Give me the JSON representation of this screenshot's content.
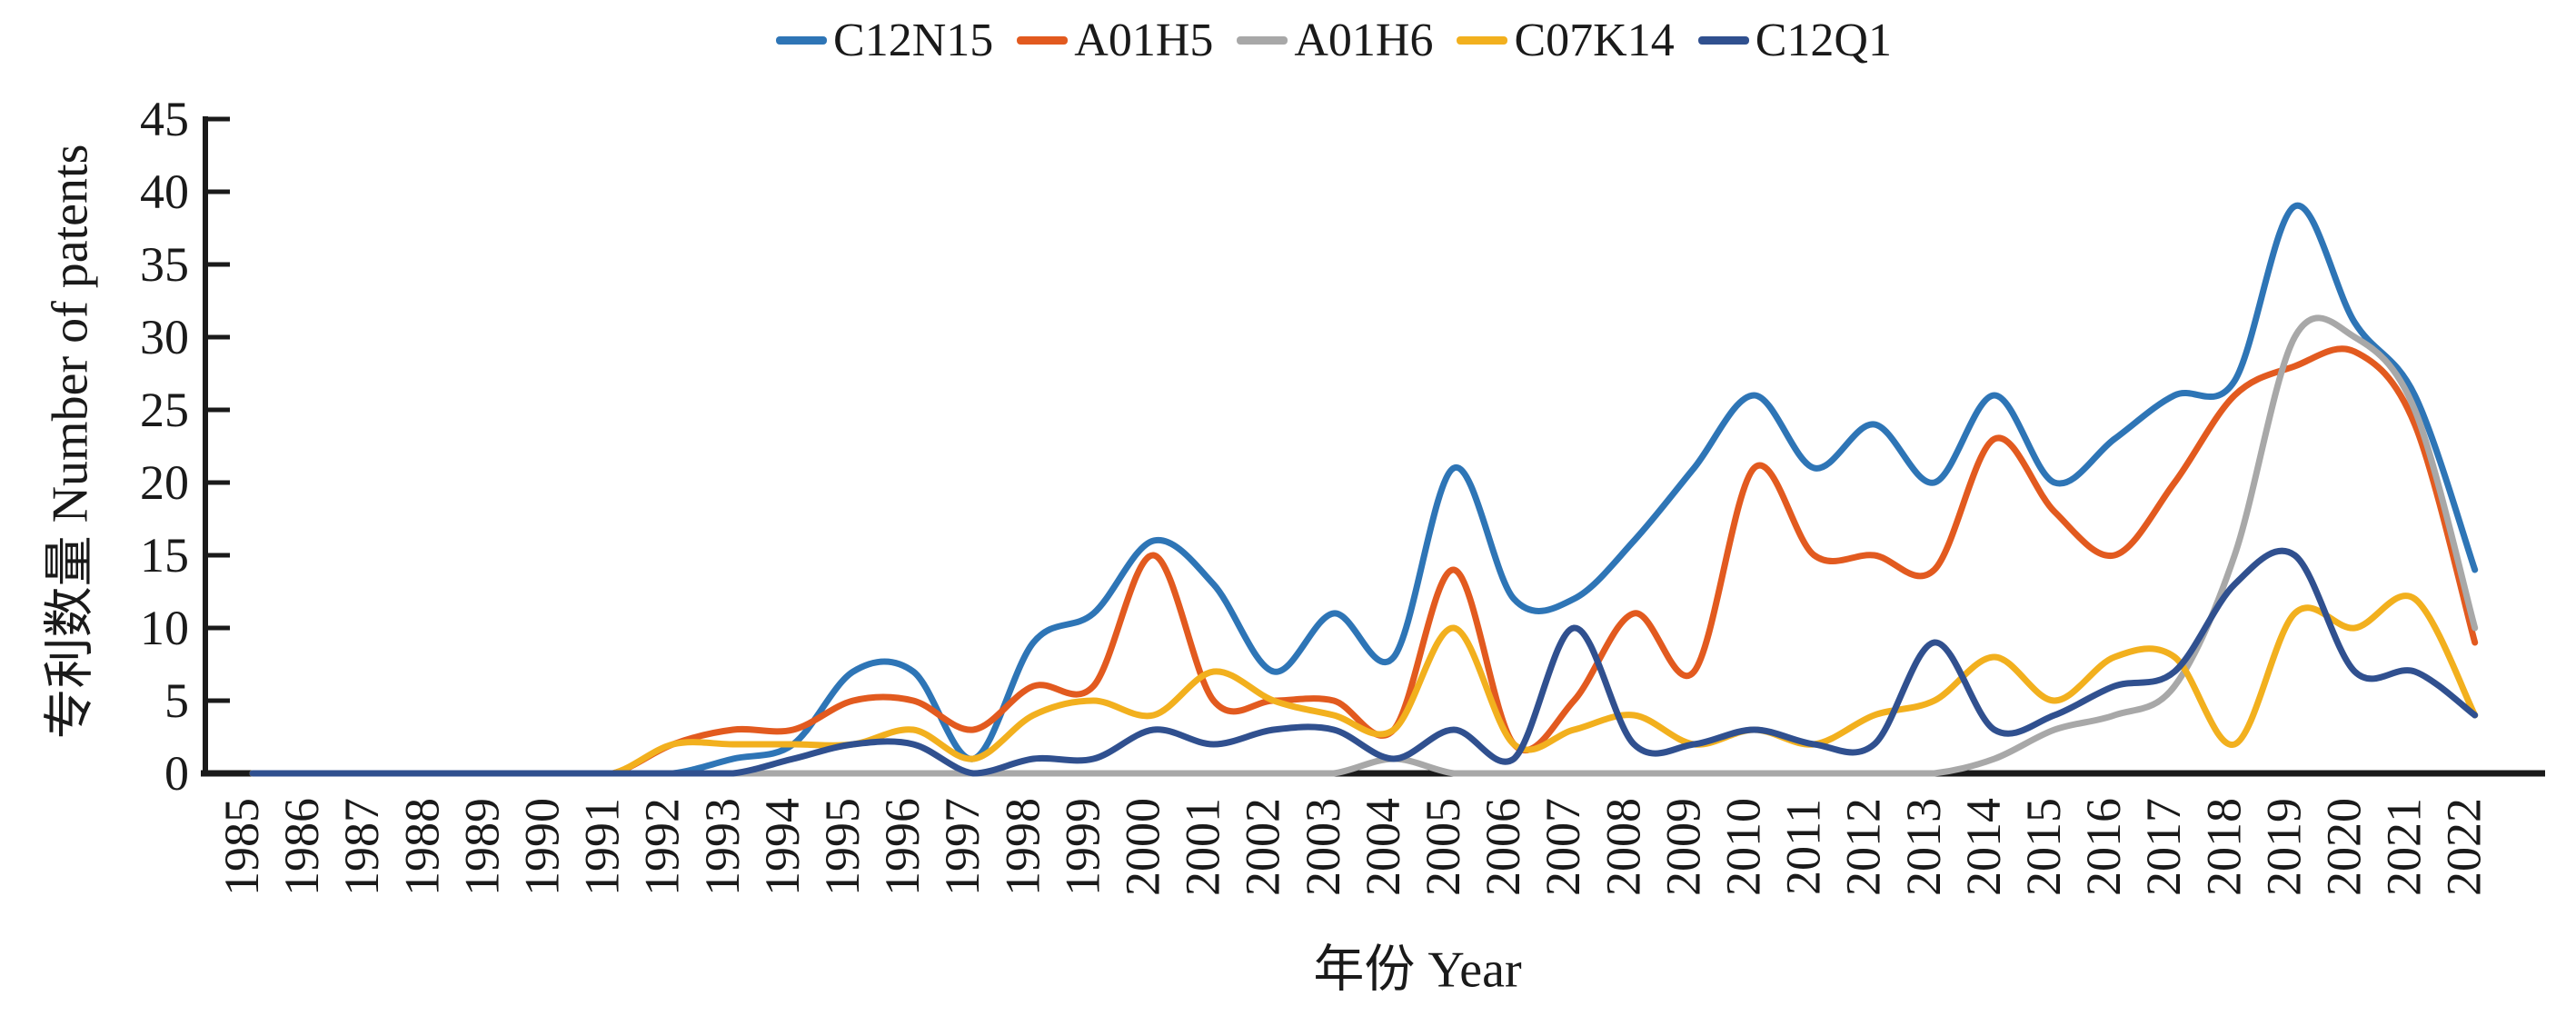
{
  "chart_data": {
    "type": "line",
    "title": "",
    "xlabel": "年份  Year",
    "ylabel": "专利数量  Number of patents",
    "ylim": [
      0,
      45
    ],
    "ytick_step": 5,
    "yticks": [
      "0",
      "5",
      "10",
      "15",
      "20",
      "25",
      "30",
      "35",
      "40",
      "45"
    ],
    "grid": false,
    "smooth": true,
    "legend_position": "top-center",
    "axis_color": "#1a1a1a",
    "x": [
      "1985",
      "1986",
      "1987",
      "1988",
      "1989",
      "1990",
      "1991",
      "1992",
      "1993",
      "1994",
      "1995",
      "1996",
      "1997",
      "1998",
      "1999",
      "2000",
      "2001",
      "2002",
      "2003",
      "2004",
      "2005",
      "2006",
      "2007",
      "2008",
      "2009",
      "2010",
      "2011",
      "2012",
      "2013",
      "2014",
      "2015",
      "2016",
      "2017",
      "2018",
      "2019",
      "2020",
      "2021",
      "2022"
    ],
    "series": [
      {
        "name": "C12N15",
        "color": "#2E75B6",
        "values": [
          0,
          0,
          0,
          0,
          0,
          0,
          0,
          0,
          1,
          2,
          7,
          7,
          1,
          9,
          11,
          16,
          13,
          7,
          11,
          8,
          21,
          12,
          12,
          16,
          21,
          26,
          21,
          24,
          20,
          26,
          20,
          23,
          26,
          27,
          39,
          31,
          26,
          14
        ]
      },
      {
        "name": "A01H5",
        "color": "#E25A1F",
        "values": [
          0,
          0,
          0,
          0,
          0,
          0,
          0,
          2,
          3,
          3,
          5,
          5,
          3,
          6,
          6,
          15,
          5,
          5,
          5,
          3,
          14,
          2,
          5,
          11,
          7,
          21,
          15,
          15,
          14,
          23,
          18,
          15,
          20,
          26,
          28,
          29,
          24,
          9
        ]
      },
      {
        "name": "A01H6",
        "color": "#A8A8A8",
        "values": [
          0,
          0,
          0,
          0,
          0,
          0,
          0,
          0,
          0,
          0,
          0,
          0,
          0,
          0,
          0,
          0,
          0,
          0,
          0,
          1,
          0,
          0,
          0,
          0,
          0,
          0,
          0,
          0,
          0,
          1,
          3,
          4,
          6,
          15,
          30,
          30,
          25,
          10
        ]
      },
      {
        "name": "C07K14",
        "color": "#F2B01E",
        "values": [
          0,
          0,
          0,
          0,
          0,
          0,
          0,
          2,
          2,
          2,
          2,
          3,
          1,
          4,
          5,
          4,
          7,
          5,
          4,
          3,
          10,
          2,
          3,
          4,
          2,
          3,
          2,
          4,
          5,
          8,
          5,
          8,
          8,
          2,
          11,
          10,
          12,
          4
        ]
      },
      {
        "name": "C12Q1",
        "color": "#30508F",
        "values": [
          0,
          0,
          0,
          0,
          0,
          0,
          0,
          0,
          0,
          1,
          2,
          2,
          0,
          1,
          1,
          3,
          2,
          3,
          3,
          1,
          3,
          1,
          10,
          2,
          2,
          3,
          2,
          2,
          9,
          3,
          4,
          6,
          7,
          13,
          15,
          7,
          7,
          4
        ]
      }
    ]
  }
}
